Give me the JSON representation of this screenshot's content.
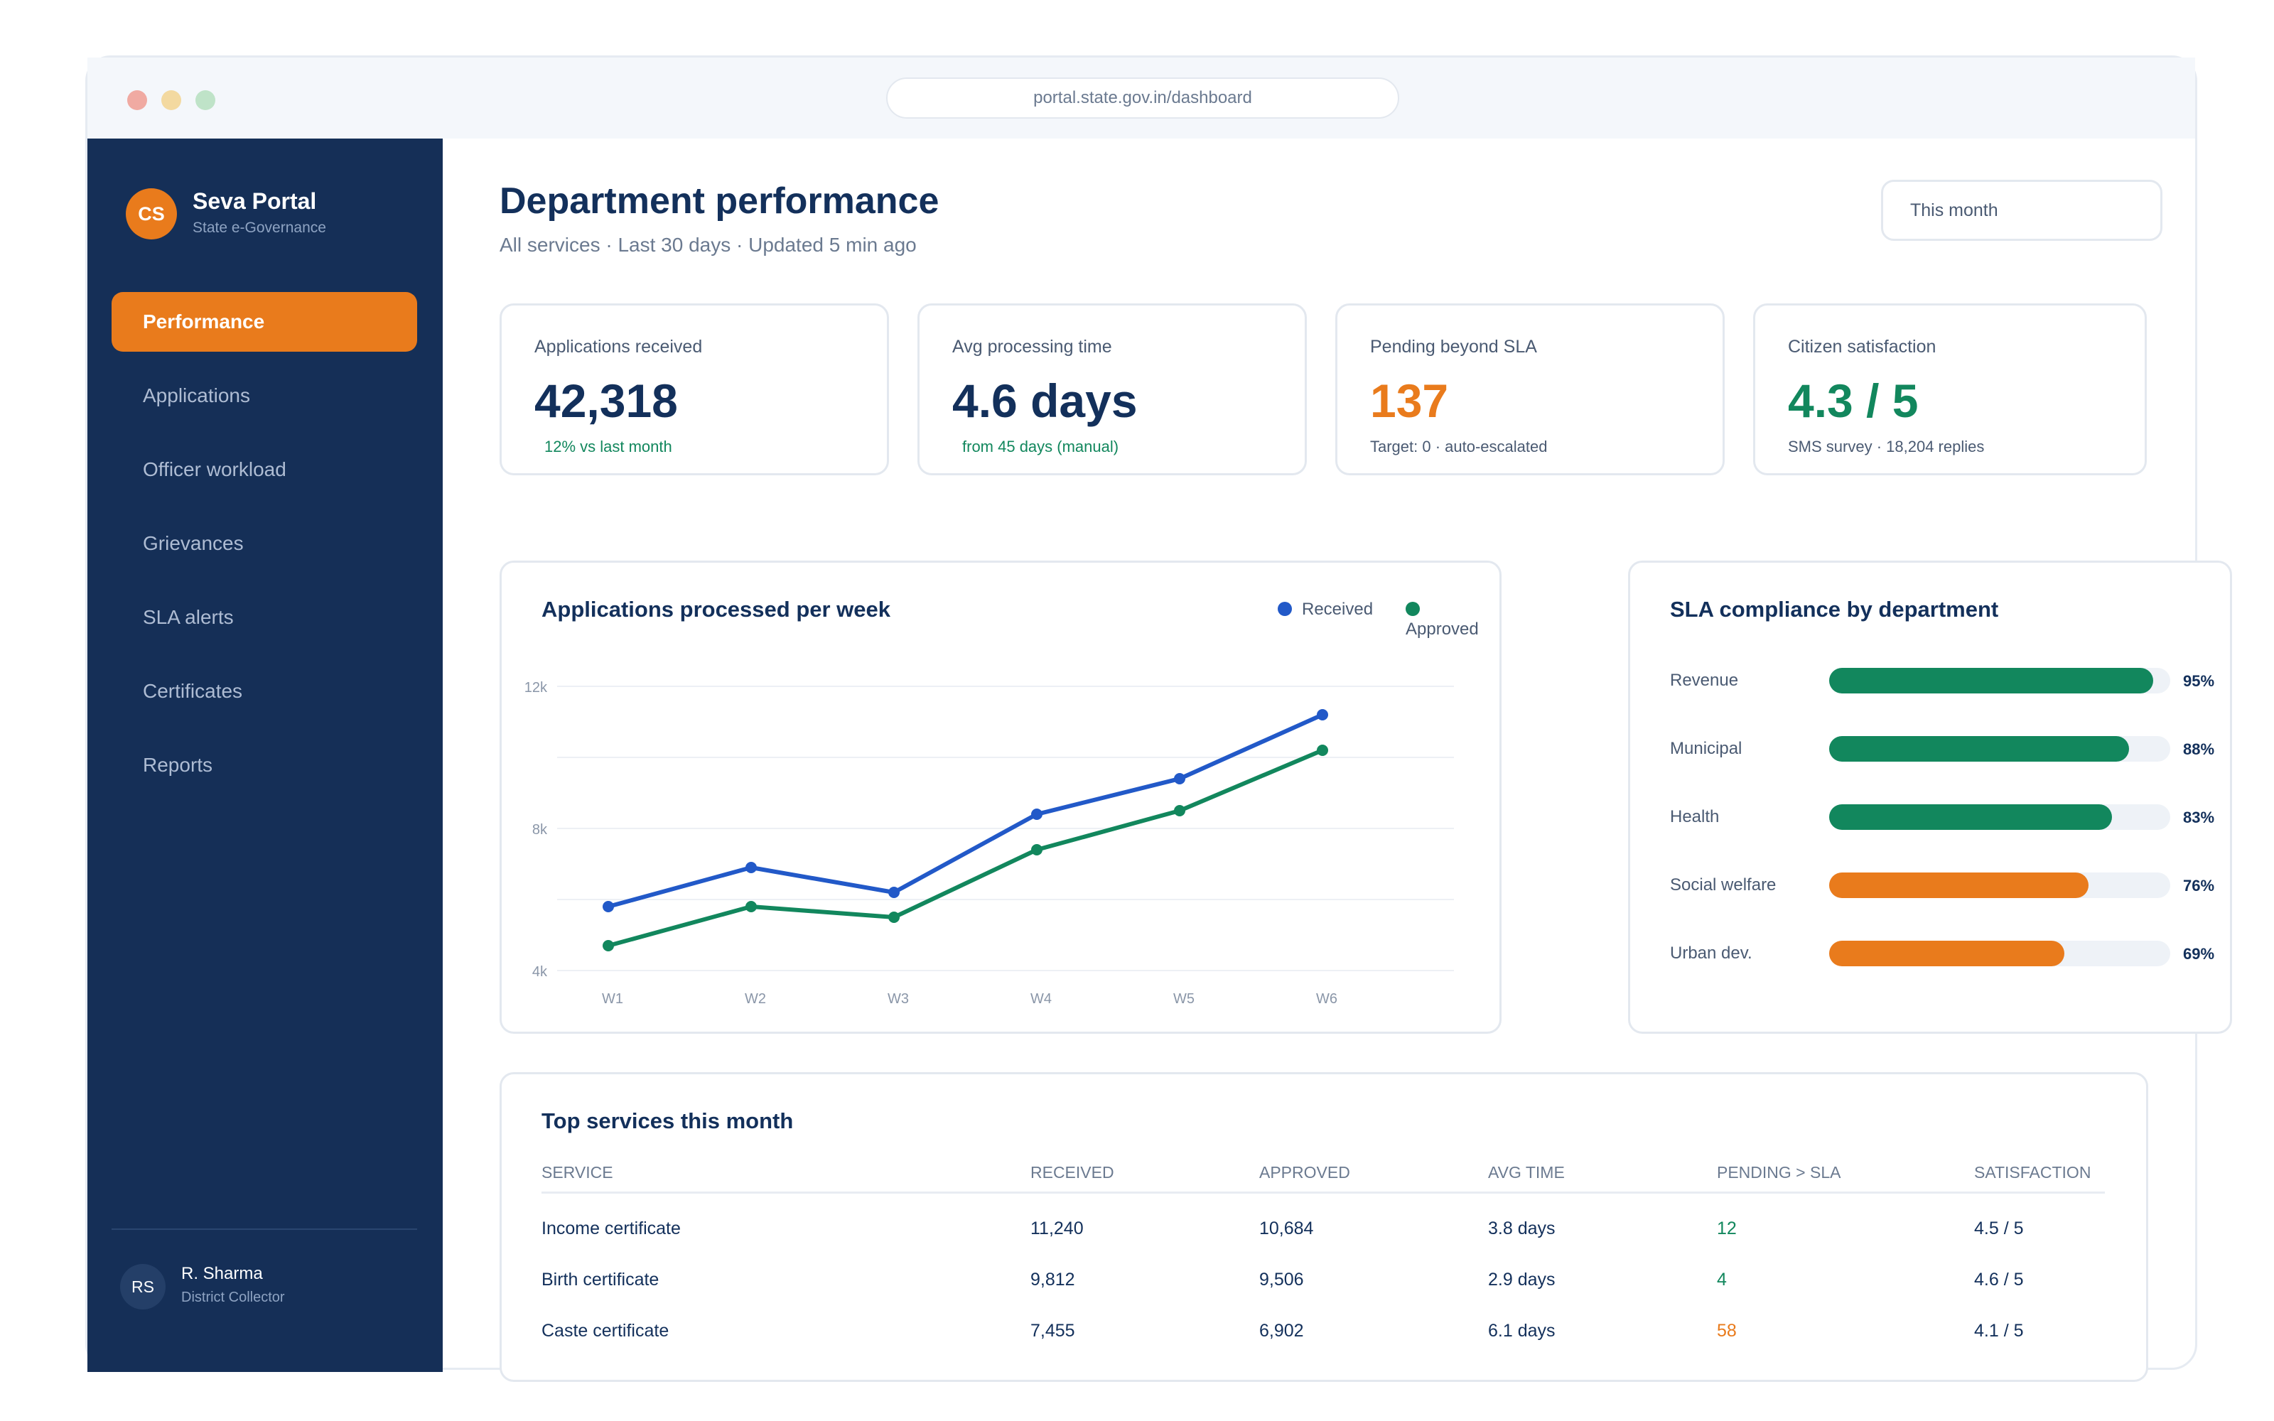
{
  "browser": {
    "url": "portal.state.gov.in/dashboard"
  },
  "sidebar": {
    "brand": {
      "initials": "CS",
      "name": "Seva Portal",
      "subtitle": "State e-Governance"
    },
    "items": [
      {
        "label": "Performance",
        "active": true
      },
      {
        "label": "Applications"
      },
      {
        "label": "Officer workload"
      },
      {
        "label": "Grievances"
      },
      {
        "label": "SLA alerts"
      },
      {
        "label": "Certificates"
      },
      {
        "label": "Reports"
      }
    ],
    "user": {
      "initials": "RS",
      "name": "R. Sharma",
      "role": "District Collector"
    }
  },
  "header": {
    "title": "Department performance",
    "subtitle": "All services · Last 30 days · Updated 5 min ago",
    "range_select": "This month"
  },
  "kpis": [
    {
      "label": "Applications received",
      "value": "42,318",
      "note": "12% vs last month"
    },
    {
      "label": "Avg processing time",
      "value": "4.6 days",
      "note": "from 45 days (manual)"
    },
    {
      "label": "Pending beyond SLA",
      "value": "137",
      "note": "Target: 0 · auto-escalated"
    },
    {
      "label": "Citizen satisfaction",
      "value": "4.3 / 5",
      "note": "SMS survey · 18,204 replies"
    }
  ],
  "colors": {
    "accent": "#e97b1c",
    "navy": "#152f57",
    "blue": "#2259c8",
    "green": "#12875d"
  },
  "weekly_chart": {
    "title": "Applications processed per week",
    "legend": [
      "Received",
      "Approved"
    ]
  },
  "chart_data": [
    {
      "type": "line",
      "title": "Applications processed per week",
      "categories": [
        "W1",
        "W2",
        "W3",
        "W4",
        "W5",
        "W6"
      ],
      "series": [
        {
          "name": "Received",
          "color": "#2259c8",
          "values": [
            5800,
            6900,
            6200,
            8400,
            9400,
            11200
          ]
        },
        {
          "name": "Approved",
          "color": "#12875d",
          "values": [
            4700,
            5800,
            5500,
            7400,
            8500,
            10200
          ]
        }
      ],
      "yticks": [
        "4k",
        "8k",
        "12k"
      ],
      "ylim": [
        4000,
        12000
      ],
      "grid": true,
      "legend": "top-right"
    },
    {
      "type": "bar",
      "orientation": "horizontal",
      "title": "SLA compliance by department",
      "categories": [
        "Revenue",
        "Municipal",
        "Health",
        "Social welfare",
        "Urban dev."
      ],
      "values": [
        95,
        88,
        83,
        76,
        69
      ],
      "labels": [
        "95%",
        "88%",
        "83%",
        "76%",
        "69%"
      ],
      "colors": [
        "#12875d",
        "#12875d",
        "#12875d",
        "#e97b1c",
        "#e97b1c"
      ],
      "xlim": [
        0,
        100
      ]
    }
  ],
  "services_table": {
    "title": "Top services this month",
    "columns": [
      "SERVICE",
      "RECEIVED",
      "APPROVED",
      "AVG TIME",
      "PENDING > SLA",
      "SATISFACTION"
    ],
    "rows": [
      [
        "Income certificate",
        "11,240",
        "10,684",
        "3.8 days",
        "12",
        "4.5 / 5"
      ],
      [
        "Birth certificate",
        "9,812",
        "9,506",
        "2.9 days",
        "4",
        "4.6 / 5"
      ],
      [
        "Caste certificate",
        "7,455",
        "6,902",
        "6.1 days",
        "58",
        "4.1 / 5"
      ]
    ]
  }
}
